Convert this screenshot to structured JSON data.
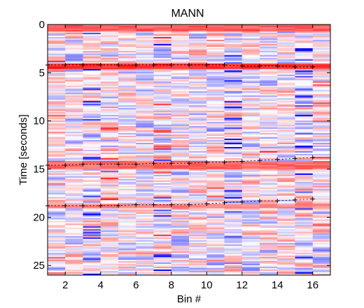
{
  "chart_data": {
    "type": "heatmap",
    "title": "MANN",
    "xlabel": "Bin #",
    "ylabel": "Time [seconds]",
    "xlim": [
      1,
      17
    ],
    "ylim": [
      0,
      26
    ],
    "y_reversed": true,
    "x_ticks": [
      2,
      4,
      6,
      8,
      10,
      12,
      14,
      16
    ],
    "y_ticks": [
      0,
      5,
      10,
      15,
      20,
      25
    ],
    "colormap": {
      "negative": "#0000ff",
      "zero": "#ffffff",
      "positive": "#ff0000"
    },
    "bins": 16,
    "time_rows": 180,
    "onset_markers": [
      {
        "y": [
          4.2,
          4.2,
          4.2,
          4.2,
          4.2,
          4.2,
          4.2,
          4.2,
          4.2,
          4.2,
          4.2,
          4.3,
          4.3,
          4.3,
          4.4,
          4.4
        ],
        "bins": [
          1,
          2,
          3,
          4,
          5,
          6,
          7,
          8,
          9,
          10,
          11,
          12,
          13,
          14,
          15,
          16
        ]
      },
      {
        "y": [
          14.6,
          14.6,
          14.5,
          14.5,
          14.5,
          14.5,
          14.4,
          14.4,
          14.4,
          14.3,
          14.3,
          14.2,
          14.1,
          14.0,
          13.9,
          13.8
        ],
        "bins": [
          1,
          2,
          3,
          4,
          5,
          6,
          7,
          8,
          9,
          10,
          11,
          12,
          13,
          14,
          15,
          16
        ]
      },
      {
        "y": [
          18.8,
          18.8,
          18.8,
          18.8,
          18.8,
          18.7,
          18.7,
          18.7,
          18.7,
          18.6,
          18.5,
          18.4,
          18.3,
          18.3,
          18.2,
          18.1
        ],
        "bins": [
          1,
          2,
          3,
          4,
          5,
          6,
          7,
          8,
          9,
          10,
          11,
          12,
          13,
          14,
          15,
          16
        ]
      }
    ],
    "red_bands": [
      {
        "y": [
          0,
          0.6
        ],
        "intensity": 0.75
      },
      {
        "y": [
          4.0,
          4.6
        ],
        "intensity": 0.95
      },
      {
        "y": [
          14.1,
          14.9
        ],
        "intensity": 0.7
      },
      {
        "y": [
          18.5,
          19.0
        ],
        "intensity": 0.6
      }
    ]
  }
}
